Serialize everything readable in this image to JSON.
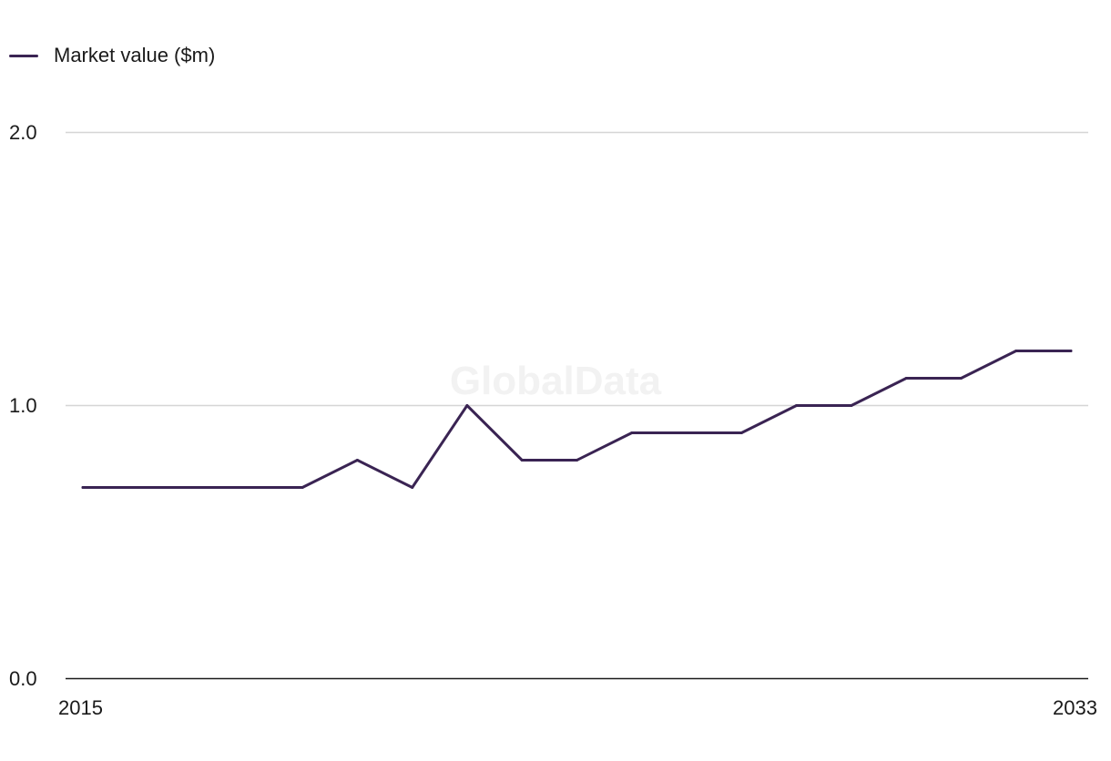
{
  "legend": {
    "label": "Market value ($m)"
  },
  "watermark": "GlobalData",
  "chart_data": {
    "type": "line",
    "x": [
      2015,
      2016,
      2017,
      2018,
      2019,
      2020,
      2021,
      2022,
      2023,
      2024,
      2025,
      2026,
      2027,
      2028,
      2029,
      2030,
      2031,
      2032,
      2033
    ],
    "x_tick_labels": [
      "2015",
      "2033"
    ],
    "series": [
      {
        "name": "Market value ($m)",
        "values": [
          0.7,
          0.7,
          0.7,
          0.7,
          0.7,
          0.8,
          0.7,
          1.0,
          0.8,
          0.8,
          0.9,
          0.9,
          0.9,
          1.0,
          1.0,
          1.1,
          1.1,
          1.2,
          1.2
        ],
        "color": "#3a2453"
      }
    ],
    "y_ticks": [
      "0.0",
      "1.0",
      "2.0"
    ],
    "ylim": [
      0,
      2
    ],
    "xlim": [
      2015,
      2033
    ],
    "grid": true,
    "legend_position": "top-left",
    "title": "",
    "xlabel": "",
    "ylabel": ""
  }
}
